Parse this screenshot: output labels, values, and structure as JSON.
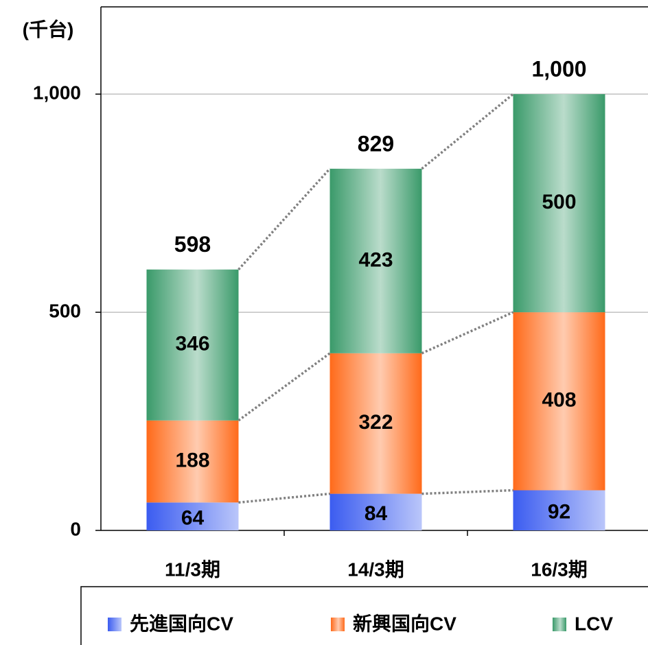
{
  "chart_data": {
    "type": "stacked_bar",
    "y_label": "(千台)",
    "categories": [
      "11/3期",
      "14/3期",
      "16/3期"
    ],
    "series": [
      {
        "name": "先進国向CV",
        "color": "#3b5cf0",
        "values": [
          64,
          84,
          92
        ]
      },
      {
        "name": "新興国向CV",
        "color": "#ff6a1a",
        "values": [
          188,
          322,
          408
        ]
      },
      {
        "name": "LCV",
        "color": "#3a9a6a",
        "values": [
          346,
          423,
          500
        ]
      }
    ],
    "totals": [
      598,
      829,
      1000
    ],
    "total_labels": [
      "598",
      "829",
      "1,000"
    ],
    "ylim": [
      0,
      1200
    ],
    "yticks": [
      0,
      500,
      {
        "value": 1000,
        "label": "1,000"
      }
    ],
    "grid": true
  }
}
